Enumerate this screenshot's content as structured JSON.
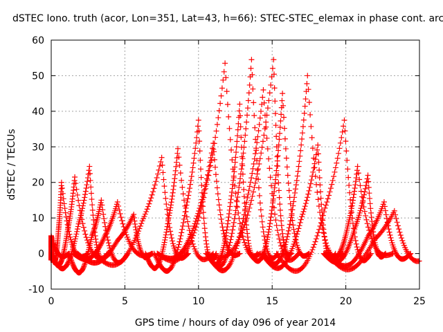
{
  "chart_data": {
    "type": "scatter",
    "title": "dSTEC Iono. truth (acor, Lon=351, Lat=43, h=66): STEC-STEC_elemax in phase cont. arc",
    "xlabel": "GPS time / hours of day 096 of year 2014",
    "ylabel": "dSTEC  / TECUs",
    "xlim": [
      0,
      25
    ],
    "ylim": [
      -10,
      60
    ],
    "x_ticks": [
      0,
      5,
      10,
      15,
      20,
      25
    ],
    "y_ticks": [
      -10,
      0,
      10,
      20,
      30,
      40,
      50,
      60
    ],
    "grid": true,
    "marker": "+",
    "color": "#ff0000",
    "arc_peak_points": [
      {
        "x": 0.0,
        "y": 5
      },
      {
        "x": 0.7,
        "y": 20
      },
      {
        "x": 1.6,
        "y": 21.5
      },
      {
        "x": 2.6,
        "y": 24.5
      },
      {
        "x": 3.4,
        "y": 15
      },
      {
        "x": 4.5,
        "y": 14.5
      },
      {
        "x": 5.6,
        "y": 11
      },
      {
        "x": 7.5,
        "y": 27
      },
      {
        "x": 8.6,
        "y": 29.5
      },
      {
        "x": 10.0,
        "y": 37.5
      },
      {
        "x": 11.0,
        "y": 31
      },
      {
        "x": 11.8,
        "y": 53.5
      },
      {
        "x": 12.8,
        "y": 42
      },
      {
        "x": 13.6,
        "y": 54.5
      },
      {
        "x": 14.4,
        "y": 46
      },
      {
        "x": 15.1,
        "y": 54.5
      },
      {
        "x": 15.7,
        "y": 45
      },
      {
        "x": 17.4,
        "y": 50
      },
      {
        "x": 18.1,
        "y": 30.5
      },
      {
        "x": 19.9,
        "y": 37.5
      },
      {
        "x": 20.8,
        "y": 24.5
      },
      {
        "x": 21.5,
        "y": 22
      },
      {
        "x": 22.6,
        "y": 14.5
      },
      {
        "x": 23.3,
        "y": 12
      }
    ]
  }
}
